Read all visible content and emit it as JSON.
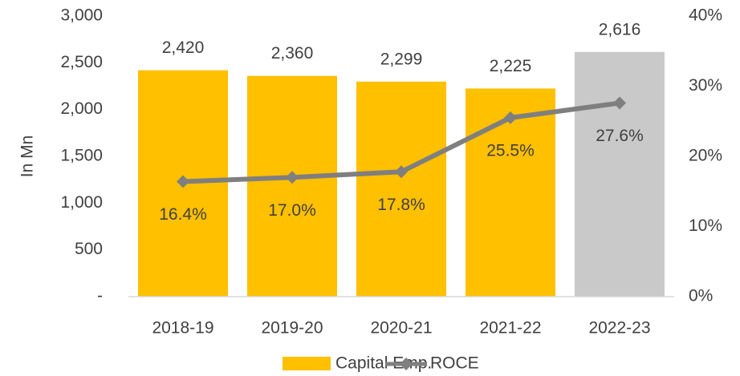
{
  "chart_data": {
    "type": "bar_line",
    "y_axis_label": "In Mn",
    "categories": [
      "2018-19",
      "2019-20",
      "2020-21",
      "2021-22",
      "2022-23"
    ],
    "series": [
      {
        "name": "Capital Emp.",
        "type": "bar",
        "color": "#ffc000",
        "colors": [
          "#ffc000",
          "#ffc000",
          "#ffc000",
          "#ffc000",
          "#c9c9c9"
        ],
        "values": [
          2420,
          2360,
          2299,
          2225,
          2616
        ],
        "value_labels": [
          "2,420",
          "2,360",
          "2,299",
          "2,225",
          "2,616"
        ]
      },
      {
        "name": "ROCE",
        "type": "line",
        "axis": "y2",
        "color": "#7f7f7f",
        "values": [
          16.4,
          17.0,
          17.8,
          25.5,
          27.6
        ],
        "value_labels": [
          "16.4%",
          "17.0%",
          "17.8%",
          "25.5%",
          "27.6%"
        ]
      }
    ],
    "ylim": [
      0,
      3000
    ],
    "yticks": [
      {
        "value": 0,
        "label": "-"
      },
      500,
      {
        "value": 1000,
        "label": "1,000"
      },
      {
        "value": 1500,
        "label": "1,500"
      },
      {
        "value": 2000,
        "label": "2,000"
      },
      {
        "value": 2500,
        "label": "2,500"
      },
      {
        "value": 3000,
        "label": "3,000"
      }
    ],
    "y2lim": [
      0,
      40
    ],
    "y2ticks": [
      {
        "value": 0,
        "label": "0%"
      },
      {
        "value": 10,
        "label": "10%"
      },
      {
        "value": 20,
        "label": "20%"
      },
      {
        "value": 30,
        "label": "30%"
      },
      {
        "value": 40,
        "label": "40%"
      }
    ],
    "grid": false,
    "legend": "bottom"
  }
}
